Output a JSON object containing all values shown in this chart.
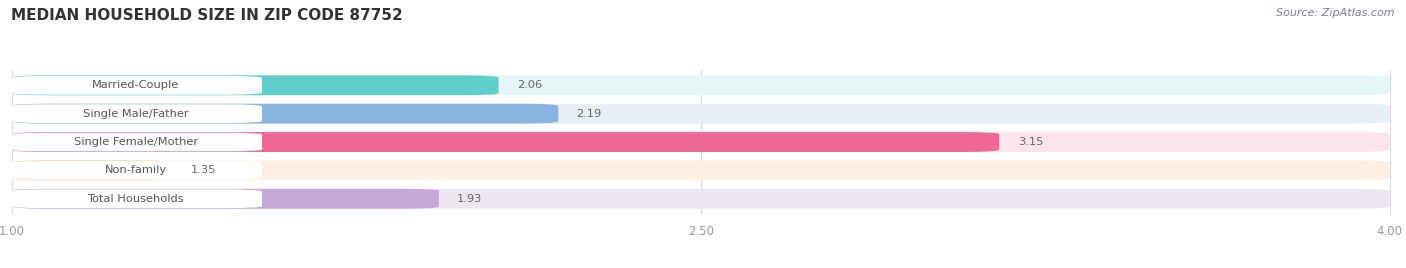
{
  "title": "MEDIAN HOUSEHOLD SIZE IN ZIP CODE 87752",
  "source": "Source: ZipAtlas.com",
  "categories": [
    "Married-Couple",
    "Single Male/Father",
    "Single Female/Mother",
    "Non-family",
    "Total Households"
  ],
  "values": [
    2.06,
    2.19,
    3.15,
    1.35,
    1.93
  ],
  "bar_colors": [
    "#5ecfcb",
    "#8ab4e0",
    "#f06898",
    "#f5c9a0",
    "#c5a8d8"
  ],
  "bar_bg_colors": [
    "#e4f6f6",
    "#e6eef8",
    "#fce4ef",
    "#fdf0e2",
    "#ede4f4"
  ],
  "row_bg_colors": [
    "#f0f8f8",
    "#edf2fb",
    "#fceef5",
    "#fdf6ee",
    "#f5eefa"
  ],
  "xmin": 1.0,
  "xmax": 4.0,
  "xticks": [
    1.0,
    2.5,
    4.0
  ],
  "value_label_color": "#666666",
  "title_color": "#333333",
  "source_color": "#7a7aaa",
  "label_color": "#555555",
  "bg_color": "#ffffff",
  "grid_color": "#d8d8e0"
}
